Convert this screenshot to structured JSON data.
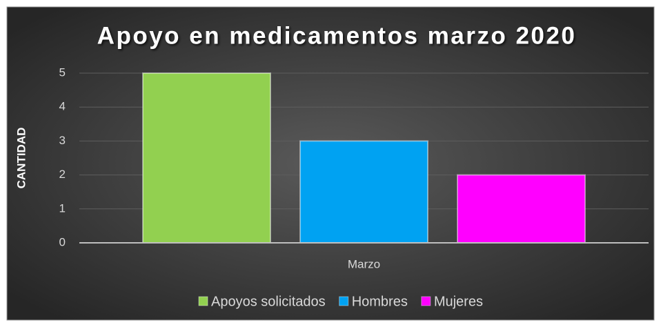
{
  "chart_data": {
    "type": "bar",
    "title": "Apoyo en medicamentos marzo 2020",
    "ylabel": "CANTIDAD",
    "categories": [
      "Marzo"
    ],
    "series": [
      {
        "name": "Apoyos solicitados",
        "color": "#92d050",
        "values": [
          5
        ]
      },
      {
        "name": "Hombres",
        "color": "#00a2f2",
        "values": [
          3
        ]
      },
      {
        "name": "Mujeres",
        "color": "#ff00ff",
        "values": [
          2
        ]
      }
    ],
    "ylim": [
      0,
      5
    ],
    "yticks": [
      0,
      1,
      2,
      3,
      4,
      5
    ],
    "grid": true,
    "legend": "bottom"
  }
}
